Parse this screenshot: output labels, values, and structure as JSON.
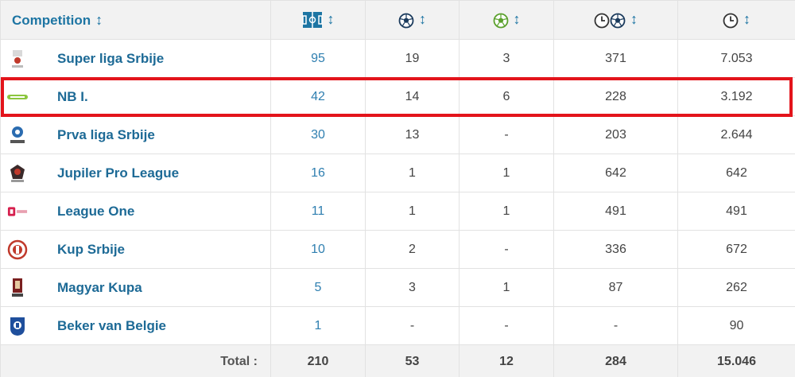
{
  "table": {
    "header": {
      "competition_label": "Competition",
      "sort_glyph": "↕",
      "columns": [
        {
          "icon": "appearances-pitch-icon"
        },
        {
          "icon": "goals-ball-icon"
        },
        {
          "icon": "assists-ball-icon"
        },
        {
          "icon": "minutes-per-goal-icon"
        },
        {
          "icon": "minutes-played-clock-icon"
        }
      ]
    },
    "rows": [
      {
        "competition": "Super liga Srbije",
        "logo": "super-liga-srbije-logo",
        "apps": "95",
        "goals": "19",
        "assists": "3",
        "min_per_goal": "371",
        "minutes": "7.053"
      },
      {
        "competition": "NB I.",
        "logo": "nb-i-logo",
        "apps": "42",
        "goals": "14",
        "assists": "6",
        "min_per_goal": "228",
        "minutes": "3.192"
      },
      {
        "competition": "Prva liga Srbije",
        "logo": "prva-liga-srbije-logo",
        "apps": "30",
        "goals": "13",
        "assists": "-",
        "min_per_goal": "203",
        "minutes": "2.644"
      },
      {
        "competition": "Jupiler Pro League",
        "logo": "jupiler-pro-league-logo",
        "apps": "16",
        "goals": "1",
        "assists": "1",
        "min_per_goal": "642",
        "minutes": "642"
      },
      {
        "competition": "League One",
        "logo": "league-one-logo",
        "apps": "11",
        "goals": "1",
        "assists": "1",
        "min_per_goal": "491",
        "minutes": "491"
      },
      {
        "competition": "Kup Srbije",
        "logo": "kup-srbije-logo",
        "apps": "10",
        "goals": "2",
        "assists": "-",
        "min_per_goal": "336",
        "minutes": "672"
      },
      {
        "competition": "Magyar Kupa",
        "logo": "magyar-kupa-logo",
        "apps": "5",
        "goals": "3",
        "assists": "1",
        "min_per_goal": "87",
        "minutes": "262"
      },
      {
        "competition": "Beker van Belgie",
        "logo": "beker-van-belgie-logo",
        "apps": "1",
        "goals": "-",
        "assists": "-",
        "min_per_goal": "-",
        "minutes": "90"
      }
    ],
    "total": {
      "label": "Total :",
      "apps": "210",
      "goals": "53",
      "assists": "12",
      "min_per_goal": "284",
      "minutes": "15.046"
    },
    "highlighted_row": "NB I."
  },
  "colors": {
    "accent": "#1d75a3",
    "highlight_border": "#e3141b",
    "header_bg": "#f2f2f2"
  }
}
